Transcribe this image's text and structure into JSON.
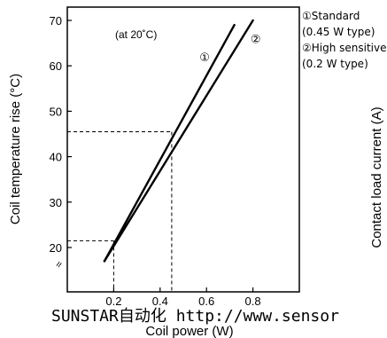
{
  "chart_data": {
    "type": "line",
    "title": "",
    "xlabel": "Coil power (W)",
    "ylabel": "Coil temperature rise (°C)",
    "right_axis_label": "Contact load current (A)",
    "xlim": [
      0,
      1.0
    ],
    "ylim": [
      10,
      70
    ],
    "x_ticks": [
      0.2,
      0.4,
      0.6,
      0.8
    ],
    "x_tick_labels": [
      "0.2",
      "0.4",
      "0.6",
      "0.8"
    ],
    "y_ticks": [
      20,
      30,
      40,
      50,
      60,
      70
    ],
    "y_tick_labels": [
      "20",
      "30",
      "40",
      "50",
      "60",
      "70"
    ],
    "condition_note": "(at 20˚C)",
    "series": [
      {
        "marker": "①",
        "x": [
          0.16,
          0.72
        ],
        "y": [
          17,
          69
        ]
      },
      {
        "marker": "②",
        "x": [
          0.16,
          0.8
        ],
        "y": [
          17,
          70
        ]
      }
    ],
    "reference_points": [
      {
        "x": 0.2,
        "y": 21.5
      },
      {
        "x": 0.45,
        "y": 45.5
      }
    ],
    "grid": false,
    "legend": {
      "placement": "top-right",
      "lines": [
        "①Standard",
        "(0.45 W type)",
        "②High sensitive",
        "(0.2 W type)"
      ]
    },
    "axis_break_symbol": "≈",
    "watermark": "SUNSTAR自动化 http://www.sensor"
  }
}
